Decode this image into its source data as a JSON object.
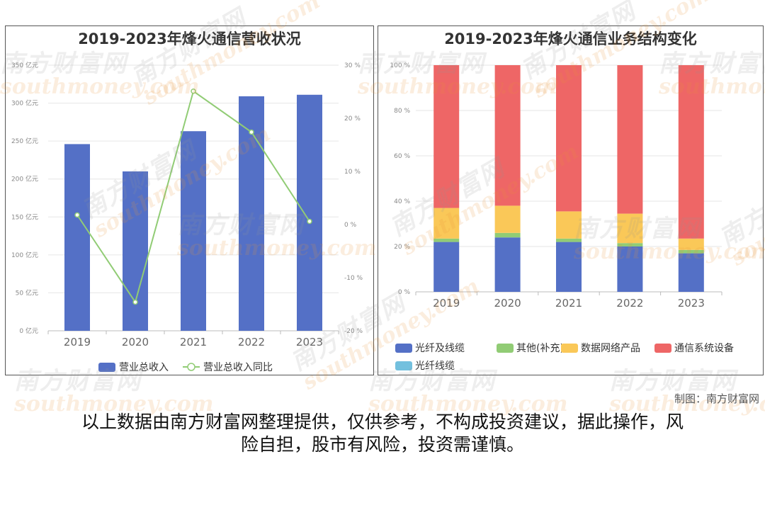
{
  "watermark": {
    "cn": "南方财富网",
    "en": "southmoney.com"
  },
  "footer": {
    "credit": "制图：南方财富网",
    "disclaimer_line1": "以上数据由南方财富网整理提供，仅供参考，不构成投资建议，据此操作，风",
    "disclaimer_line2": "险自担，股市有风险，投资需谨慎。"
  },
  "chart_data": [
    {
      "type": "bar",
      "title": "2019-2023年烽火通信营收状况",
      "categories": [
        "2019",
        "2020",
        "2021",
        "2022",
        "2023"
      ],
      "y_ticks": [
        "0 亿元",
        "50 亿元",
        "100 亿元",
        "150 亿元",
        "200 亿元",
        "250 亿元",
        "300 亿元",
        "350 亿元"
      ],
      "y2_ticks": [
        "-20 %",
        "-10 %",
        "0 %",
        "10 %",
        "20 %",
        "30 %"
      ],
      "ylim": [
        0,
        350
      ],
      "y2lim": [
        -20,
        30
      ],
      "grid": true,
      "legend_position": "bottom",
      "series": [
        {
          "name": "营业总收入",
          "type": "bar",
          "color": "#5470c6",
          "values": [
            246,
            210,
            263,
            309,
            311
          ]
        },
        {
          "name": "营业总收入同比",
          "type": "line",
          "axis": "right",
          "color": "#91cc75",
          "values": [
            1.8,
            -14.6,
            25.1,
            17.4,
            0.6
          ]
        }
      ]
    },
    {
      "type": "bar",
      "stacked": true,
      "title": "2019-2023年烽火通信业务结构变化",
      "categories": [
        "2019",
        "2020",
        "2021",
        "2022",
        "2023"
      ],
      "y_ticks": [
        "0 %",
        "20 %",
        "40 %",
        "60 %",
        "80 %",
        "100 %"
      ],
      "ylim": [
        0,
        100
      ],
      "grid": true,
      "legend_position": "bottom",
      "series": [
        {
          "name": "光纤及线缆",
          "color": "#5470c6",
          "values": [
            22,
            24,
            22,
            20,
            17
          ]
        },
        {
          "name": "其他(补充)",
          "color": "#91cc75",
          "values": [
            1.5,
            2,
            1.5,
            1.5,
            1.5
          ]
        },
        {
          "name": "数据网络产品",
          "color": "#fac858",
          "values": [
            13.5,
            12,
            12,
            13,
            5
          ]
        },
        {
          "name": "通信系统设备",
          "color": "#ee6666",
          "values": [
            63,
            62,
            64.5,
            65.5,
            76.5
          ]
        },
        {
          "name": "光纤线缆",
          "color": "#73c0de",
          "values": [
            0,
            0,
            0,
            0,
            0
          ]
        }
      ]
    }
  ]
}
